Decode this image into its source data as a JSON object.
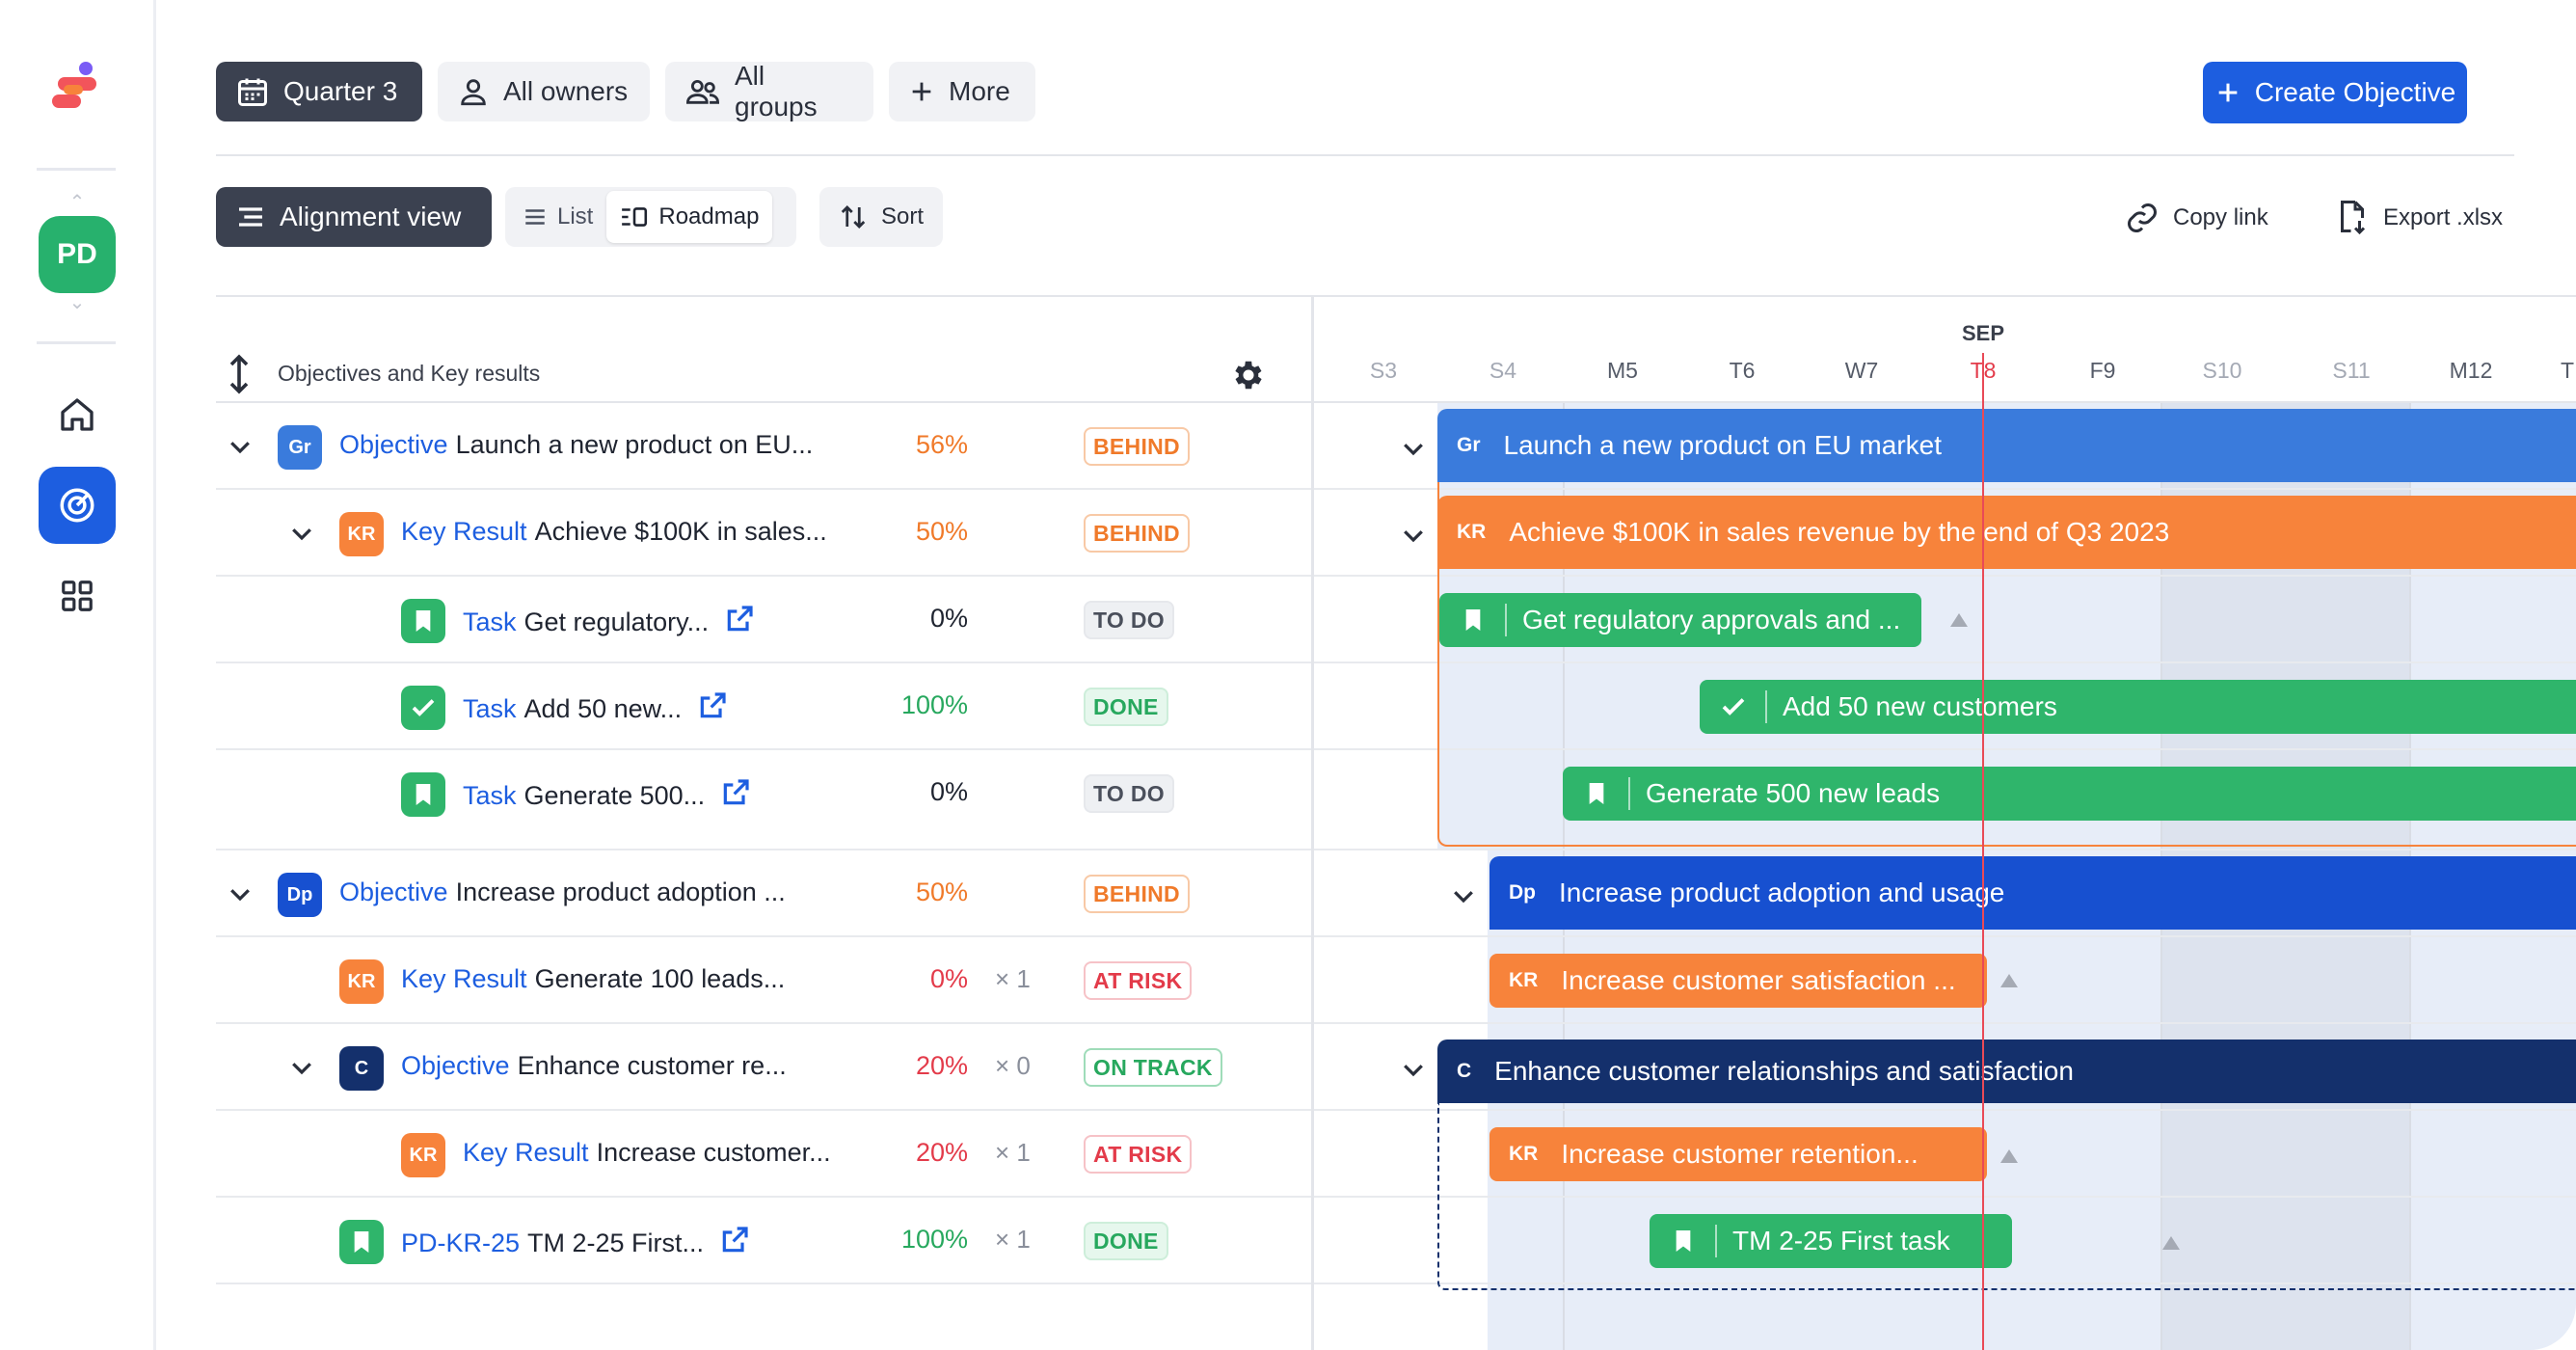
{
  "toolbar": {
    "quarter": "Quarter 3",
    "owners": "All owners",
    "groups": "All groups",
    "more": "More",
    "create": "Create Objective"
  },
  "views": {
    "alignment": "Alignment view",
    "list": "List",
    "roadmap": "Roadmap",
    "sort": "Sort",
    "copy_link": "Copy link",
    "export": "Export .xlsx"
  },
  "user": {
    "initials": "PD"
  },
  "table": {
    "header": "Objectives and Key results",
    "rows": [
      {
        "badge": "Gr",
        "kind": "Objective",
        "title": "Launch a new product on EU...",
        "pct": "56%",
        "mult": "",
        "status": "BEHIND"
      },
      {
        "badge": "KR",
        "kind": "Key Result",
        "title": "Achieve $100K in sales...",
        "pct": "50%",
        "mult": "",
        "status": "BEHIND"
      },
      {
        "badge": "",
        "kind": "Task",
        "title": "Get regulatory...",
        "pct": "0%",
        "mult": "",
        "status": "TO DO"
      },
      {
        "badge": "",
        "kind": "Task",
        "title": "Add 50 new...",
        "pct": "100%",
        "mult": "",
        "status": "DONE"
      },
      {
        "badge": "",
        "kind": "Task",
        "title": "Generate 500...",
        "pct": "0%",
        "mult": "",
        "status": "TO DO"
      },
      {
        "badge": "Dp",
        "kind": "Objective",
        "title": "Increase product adoption ...",
        "pct": "50%",
        "mult": "",
        "status": "BEHIND"
      },
      {
        "badge": "KR",
        "kind": "Key Result",
        "title": "Generate 100 leads...",
        "pct": "0%",
        "mult": "× 1",
        "status": "AT RISK"
      },
      {
        "badge": "C",
        "kind": "Objective",
        "title": "Enhance customer re...",
        "pct": "20%",
        "mult": "× 0",
        "status": "ON TRACK"
      },
      {
        "badge": "KR",
        "kind": "Key Result",
        "title": "Increase customer...",
        "pct": "20%",
        "mult": "× 1",
        "status": "AT RISK"
      },
      {
        "badge": "",
        "kind": "PD-KR-25",
        "title": "TM 2-25 First...",
        "pct": "100%",
        "mult": "× 1",
        "status": "DONE"
      }
    ]
  },
  "timeline": {
    "month": "SEP",
    "ticks": [
      "S3",
      "S4",
      "M5",
      "T6",
      "W7",
      "T8",
      "F9",
      "S10",
      "S11",
      "M12",
      "T"
    ],
    "bars": [
      {
        "tag": "Gr",
        "label": "Launch a new product on EU market"
      },
      {
        "tag": "KR",
        "label": "Achieve $100K in sales revenue by the end of Q3 2023"
      },
      {
        "tag": "",
        "label": "Get regulatory approvals and ..."
      },
      {
        "tag": "",
        "label": "Add 50 new customers"
      },
      {
        "tag": "",
        "label": "Generate 500 new leads"
      },
      {
        "tag": "Dp",
        "label": "Increase product adoption and usage"
      },
      {
        "tag": "KR",
        "label": "Increase customer satisfaction ..."
      },
      {
        "tag": "C",
        "label": "Enhance customer relationships and satisfaction"
      },
      {
        "tag": "KR",
        "label": "Increase customer retention..."
      },
      {
        "tag": "",
        "label": "TM 2-25 First task"
      }
    ]
  },
  "colors": {
    "accent": "#1d5ee0",
    "objective_gr": "#3a7bdc",
    "objective_dp": "#1750d0",
    "objective_c": "#14306c",
    "key_result": "#f7833b",
    "task": "#2fb56b",
    "today": "#e94a57"
  }
}
